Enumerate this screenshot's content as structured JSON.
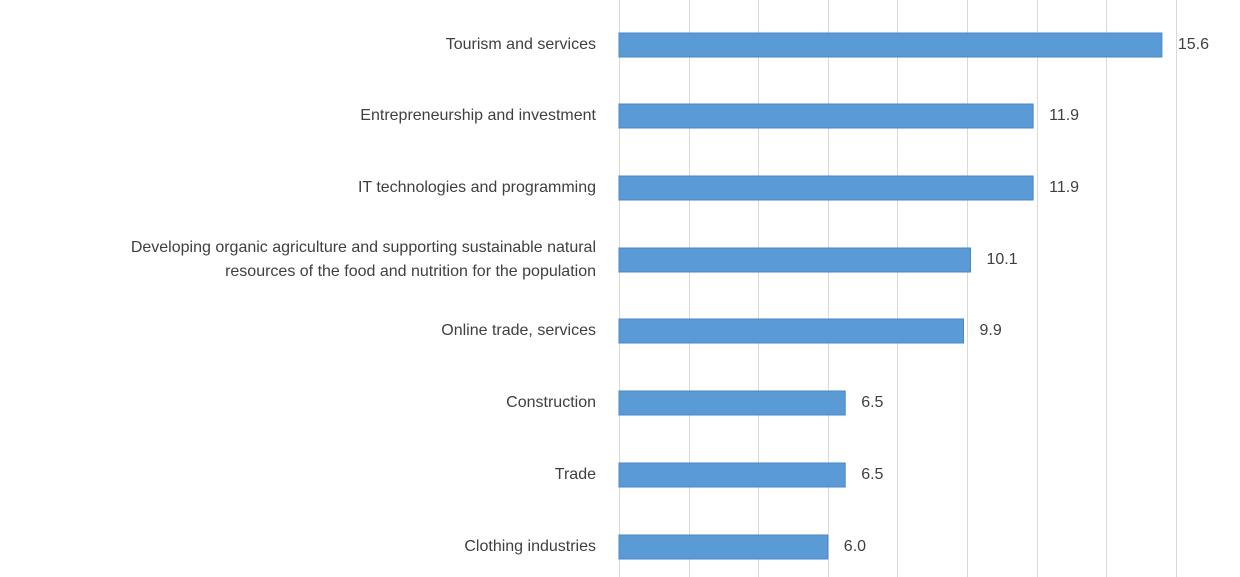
{
  "chart_data": {
    "type": "bar",
    "orientation": "horizontal",
    "title": "",
    "xlabel": "",
    "ylabel": "",
    "categories": [
      [
        "Tourism and services"
      ],
      [
        "Entrepreneurship and investment"
      ],
      [
        "IT technologies  and programming"
      ],
      [
        "Developing organic agriculture and supporting sustainable natural",
        "resources of the food and nutrition for the population"
      ],
      [
        "Online trade, services"
      ],
      [
        "Construction"
      ],
      [
        "Trade"
      ],
      [
        "Clothing industries"
      ]
    ],
    "values": [
      15.6,
      11.9,
      11.9,
      10.1,
      9.9,
      6.5,
      6.5,
      6.0
    ],
    "value_labels": [
      "15.6",
      "11.9",
      "11.9",
      "10.1",
      "9.9",
      "6.5",
      "6.5",
      "6.0"
    ],
    "xlim": [
      0,
      18
    ],
    "gridline_step": 2,
    "grid": true,
    "legend": "none",
    "bar_color": "#5b9bd5"
  }
}
